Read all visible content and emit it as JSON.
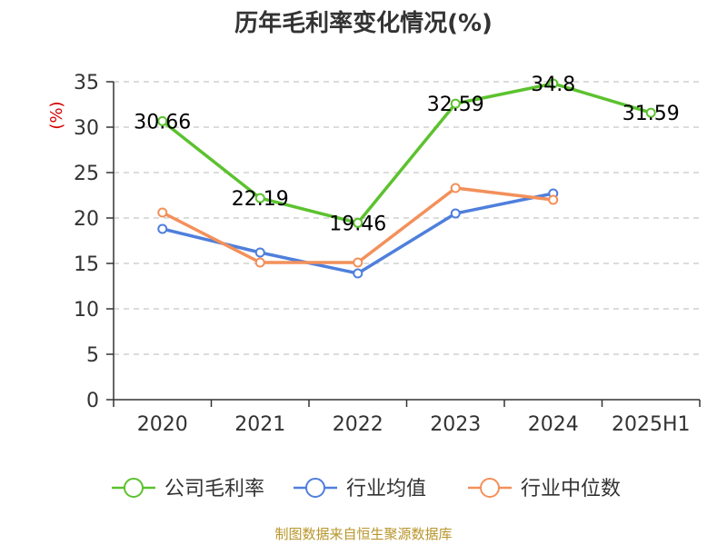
{
  "chart_data": {
    "type": "line",
    "title": "历年毛利率变化情况(%)",
    "ylabel": "(%)",
    "categories": [
      "2020",
      "2021",
      "2022",
      "2023",
      "2024",
      "2025H1"
    ],
    "ylim": [
      0,
      35
    ],
    "yticks": [
      "0",
      "5",
      "10",
      "15",
      "20",
      "25",
      "30",
      "35"
    ],
    "grid": true,
    "legend_position": "bottom",
    "series": [
      {
        "name": "公司毛利率",
        "color": "#5cc22f",
        "values": [
          30.66,
          22.19,
          19.46,
          32.59,
          34.8,
          31.59
        ],
        "labels": [
          "30.66",
          "22.19",
          "19.46",
          "32.59",
          "34.8",
          "31.59"
        ]
      },
      {
        "name": "行业均值",
        "color": "#4f7fdc",
        "values": [
          18.8,
          16.2,
          13.9,
          20.5,
          22.7,
          null
        ]
      },
      {
        "name": "行业中位数",
        "color": "#f3905a",
        "values": [
          20.6,
          15.1,
          15.1,
          23.3,
          22.0,
          null
        ]
      }
    ],
    "source": "制图数据来自恒生聚源数据库"
  }
}
